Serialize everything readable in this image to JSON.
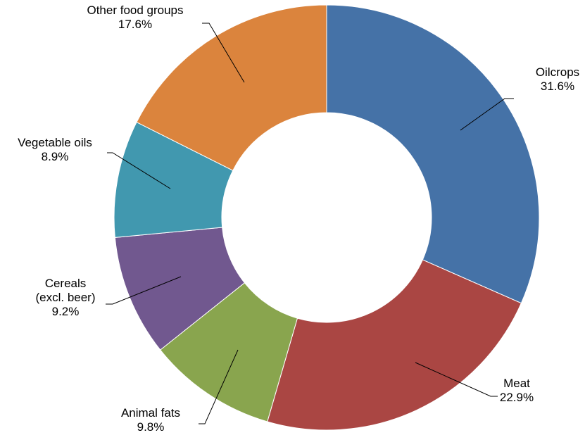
{
  "chart_data": {
    "type": "pie",
    "donut": true,
    "start_angle_deg": 0,
    "direction": "clockwise",
    "slices": [
      {
        "label": "Oilcrops",
        "value": 31.6,
        "value_label": "31.6%",
        "color": "#4572a7"
      },
      {
        "label": "Meat",
        "value": 22.9,
        "value_label": "22.9%",
        "color": "#aa4643"
      },
      {
        "label": "Animal fats",
        "value": 9.8,
        "value_label": "9.8%",
        "color": "#89a54e"
      },
      {
        "label": "Cereals\n(excl. beer)",
        "value": 9.2,
        "value_label": "9.2%",
        "color": "#71588f"
      },
      {
        "label": "Vegetable oils",
        "value": 8.9,
        "value_label": "8.9%",
        "color": "#4198af"
      },
      {
        "label": "Other food groups",
        "value": 17.6,
        "value_label": "17.6%",
        "color": "#db843d"
      }
    ],
    "title": "",
    "legend": "none"
  }
}
